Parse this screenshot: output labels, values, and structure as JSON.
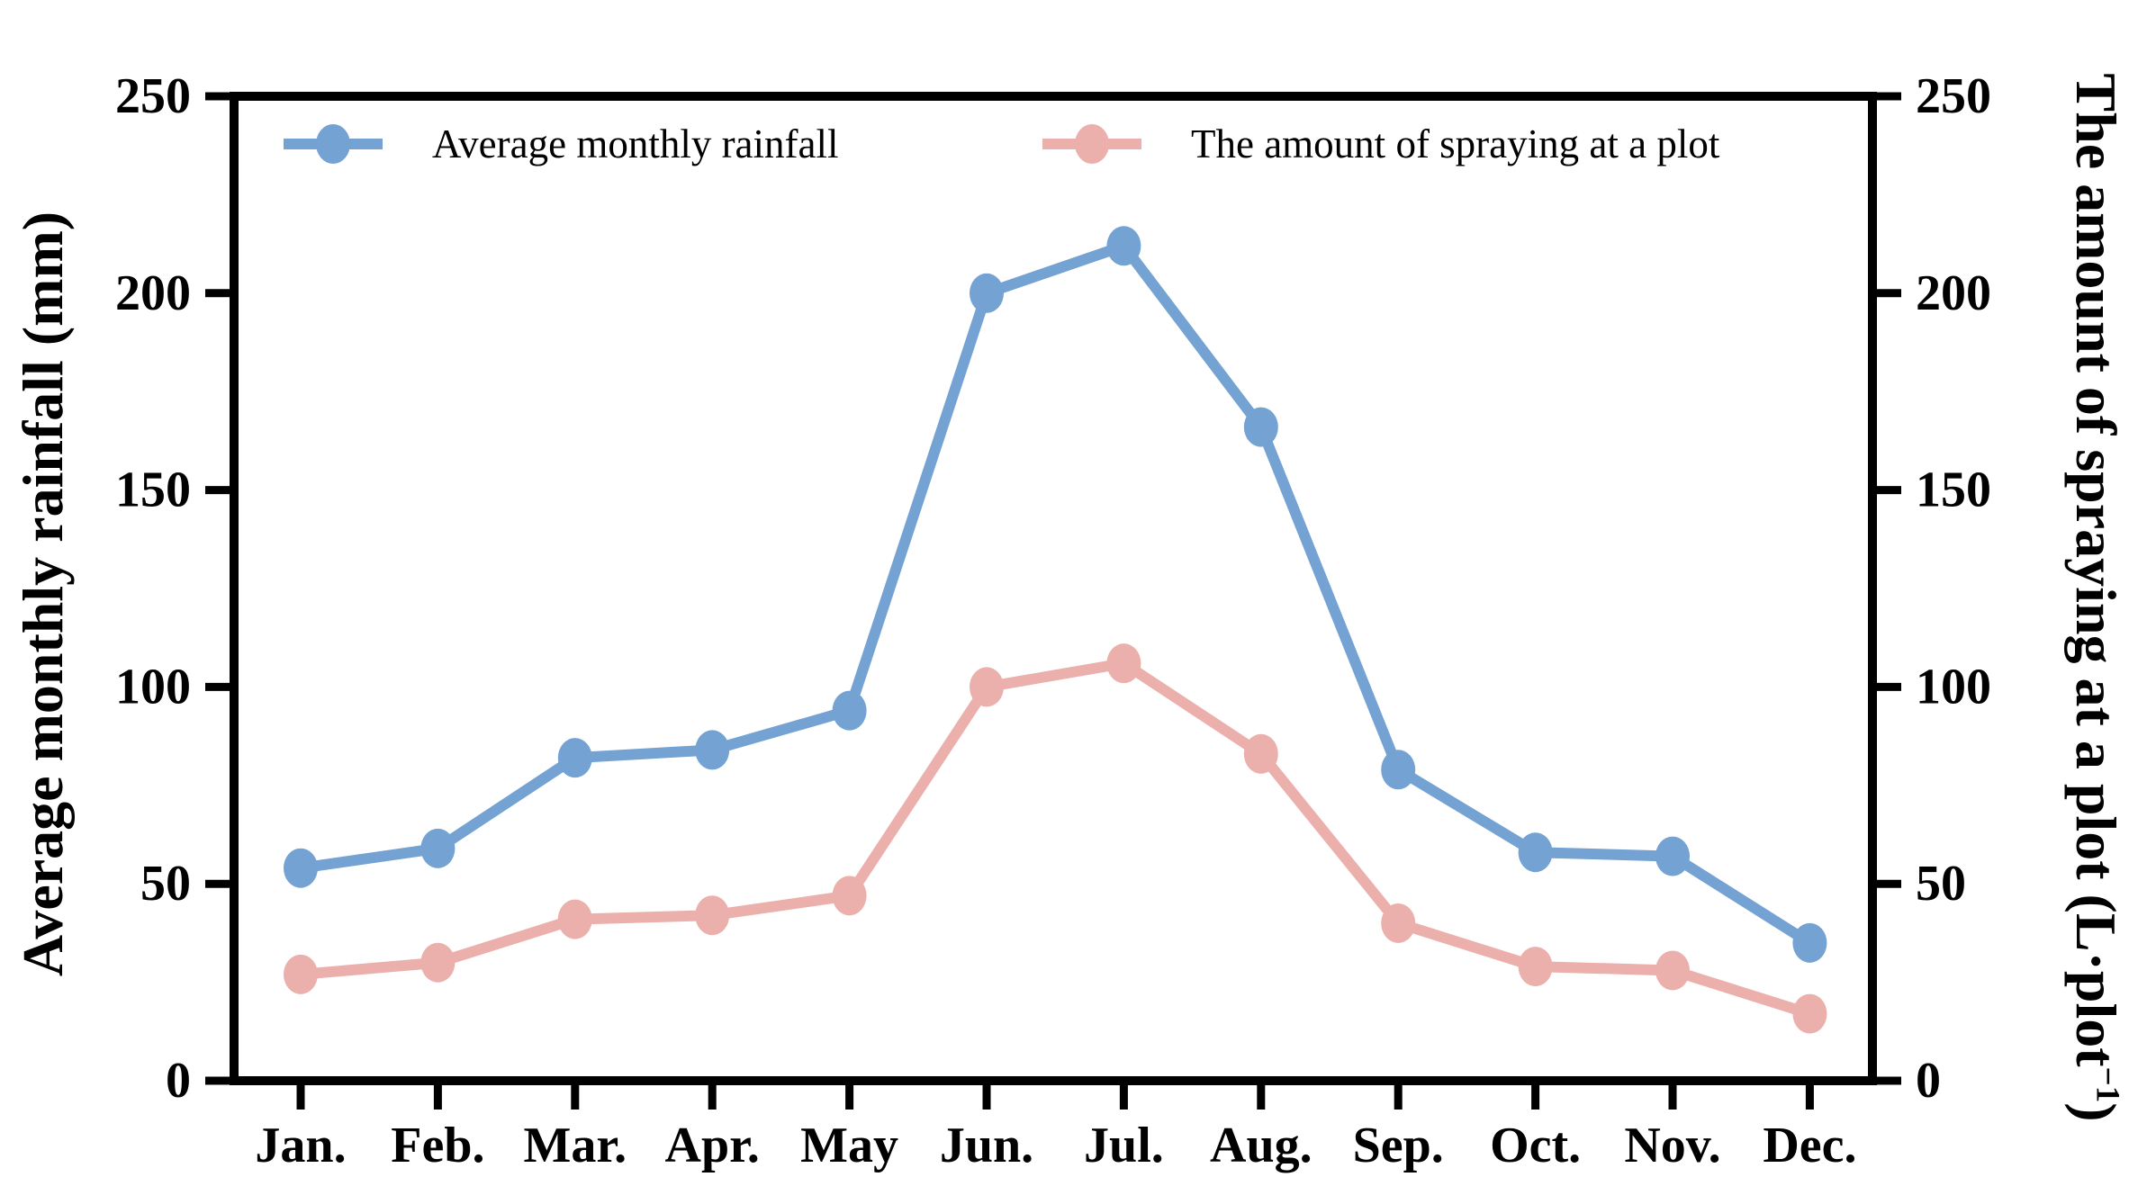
{
  "chart_data": {
    "type": "line",
    "title": "",
    "xlabel": "",
    "categories": [
      "Jan.",
      "Feb.",
      "Mar.",
      "Apr.",
      "May",
      "Jun.",
      "Jul.",
      "Aug.",
      "Sep.",
      "Oct.",
      "Nov.",
      "Dec."
    ],
    "series": [
      {
        "name": "Average monthly rainfall",
        "axis": "left",
        "color": "#74A2D3",
        "marker": "circle",
        "values": [
          54,
          59,
          82,
          84,
          94,
          200,
          212,
          166,
          79,
          58,
          57,
          35
        ]
      },
      {
        "name": "The amount of spraying at a plot",
        "axis": "right",
        "color": "#EBB0AC",
        "marker": "circle",
        "values": [
          27,
          30,
          41,
          42,
          47,
          100,
          106,
          83,
          40,
          29,
          28,
          17
        ]
      }
    ],
    "left_axis": {
      "label": "Average monthly rainfall (mm)",
      "min": 0,
      "max": 250,
      "step": 50,
      "ticks": [
        "0",
        "50",
        "100",
        "150",
        "200",
        "250"
      ]
    },
    "right_axis": {
      "label_prefix": "The amount of spraying at a plot (L·plot",
      "label_sup": "−1",
      "label_close": ")",
      "min": 0,
      "max": 250,
      "step": 50,
      "ticks": [
        "0",
        "50",
        "100",
        "150",
        "200",
        "250"
      ]
    },
    "legend": {
      "position": "top-inside"
    },
    "grid": false,
    "axis_color": "#000000",
    "background": "#FFFFFF"
  }
}
